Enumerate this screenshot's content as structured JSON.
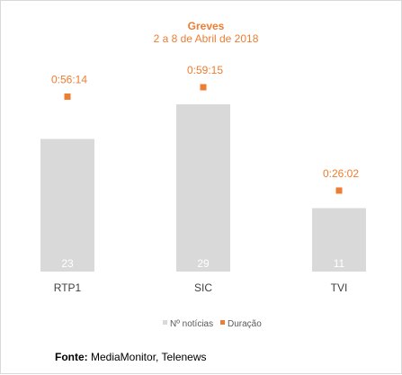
{
  "chart_data": {
    "type": "bar",
    "title": "Greves",
    "subtitle": "2 a 8 de Abril de 2018",
    "categories": [
      "RTP1",
      "SIC",
      "TVI"
    ],
    "series": [
      {
        "name": "Nº notícias",
        "values": [
          23,
          29,
          11
        ],
        "color": "#d9d9d9",
        "kind": "bar"
      },
      {
        "name": "Duração",
        "values": [
          "0:56:14",
          "0:59:15",
          "0:26:02"
        ],
        "seconds": [
          3374,
          3555,
          1562
        ],
        "color": "#ed7d31",
        "kind": "marker"
      }
    ],
    "legend": "bottom",
    "grid": false
  },
  "source": {
    "label": "Fonte:",
    "text": " MediaMonitor, Telenews"
  }
}
